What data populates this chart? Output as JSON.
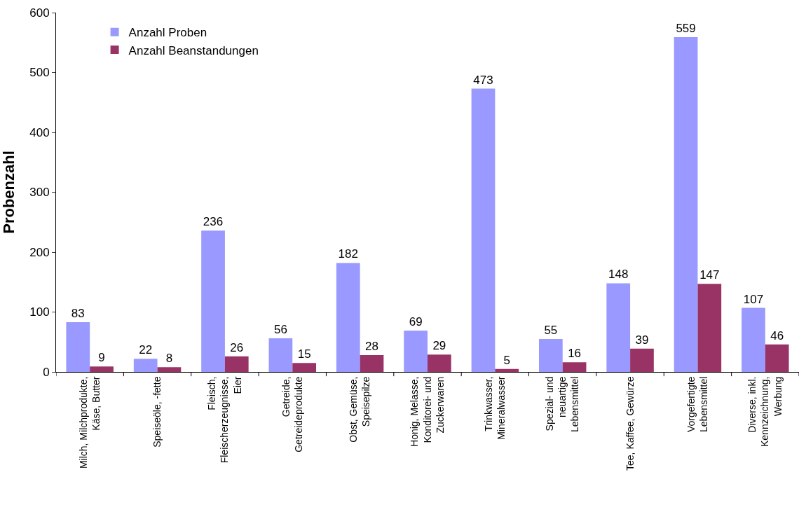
{
  "chart_data": {
    "type": "bar",
    "ylabel": "Probenzahl",
    "categories": [
      "Milch, Milchprodukte,\nKäse, Butter",
      "Speiseöle, -fette",
      "Fleisch,\nFleischerzeugnisse,\nEier",
      "Getreide,\nGetreideprodukte",
      "Obst, Gemüse,\nSpeisepilze",
      "Honig, Melasse,\nKonditorei- und\nZuckerwaren",
      "Trinkwasser,\nMineralwasser",
      "Spezial- und\nneuartige\nLebensmittel",
      "Tee, Kaffee, Gewürze",
      "Vorgefertigte\nLebensmittel",
      "Diverse, inkl.\nKennzeichnung,\nWerbung"
    ],
    "series": [
      {
        "name": "Anzahl Proben",
        "color": "#9999ff",
        "values": [
          83,
          22,
          236,
          56,
          182,
          69,
          473,
          55,
          148,
          559,
          107
        ]
      },
      {
        "name": "Anzahl Beanstandungen",
        "color": "#993366",
        "values": [
          9,
          8,
          26,
          15,
          28,
          29,
          5,
          16,
          39,
          147,
          46
        ]
      }
    ],
    "ylim": [
      0,
      600
    ],
    "yticks": [
      0,
      100,
      200,
      300,
      400,
      500,
      600
    ],
    "legend": "top left",
    "data_labels": true
  }
}
